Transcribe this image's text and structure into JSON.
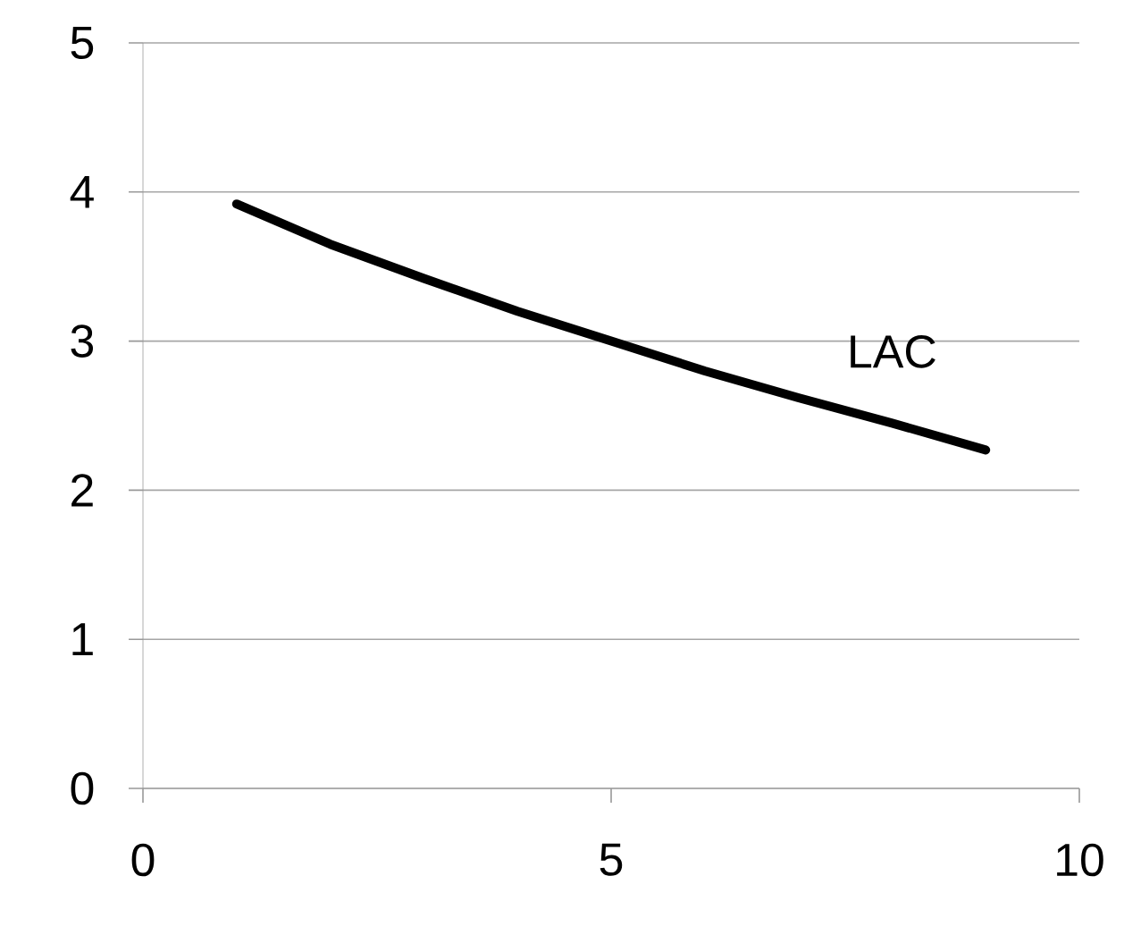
{
  "chart_data": {
    "type": "line",
    "x": [
      1,
      2,
      3,
      4,
      5,
      6,
      7,
      8,
      9
    ],
    "series": [
      {
        "name": "LAC",
        "color": "#000000",
        "values": [
          3.92,
          3.65,
          3.42,
          3.2,
          3.0,
          2.8,
          2.62,
          2.45,
          2.27
        ]
      }
    ],
    "xlim": [
      0,
      10
    ],
    "ylim": [
      0,
      5
    ],
    "xticks": [
      0,
      5,
      10
    ],
    "yticks": [
      0,
      1,
      2,
      3,
      4,
      5
    ],
    "grid": "y",
    "marker": "none",
    "line_style": "solid"
  }
}
